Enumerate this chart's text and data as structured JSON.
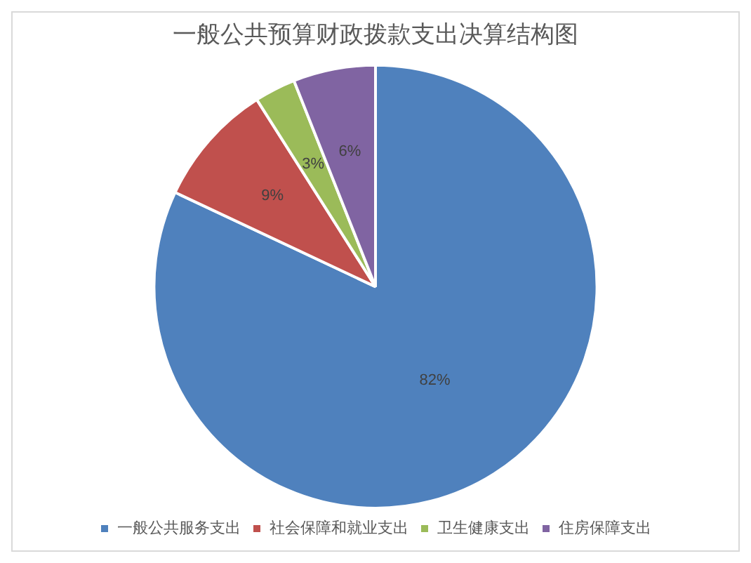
{
  "chart_data": {
    "type": "pie",
    "title": "一般公共预算财政拨款支出决算结构图",
    "categories": [
      "一般公共服务支出",
      "社会保障和就业支出",
      "卫生健康支出",
      "住房保障支出"
    ],
    "values": [
      82,
      9,
      3,
      6
    ],
    "value_labels": [
      "82%",
      "9%",
      "3%",
      "6%"
    ],
    "colors": [
      "#4f81bd",
      "#c0504d",
      "#9bbb59",
      "#8064a2"
    ],
    "legend": "bottom"
  }
}
